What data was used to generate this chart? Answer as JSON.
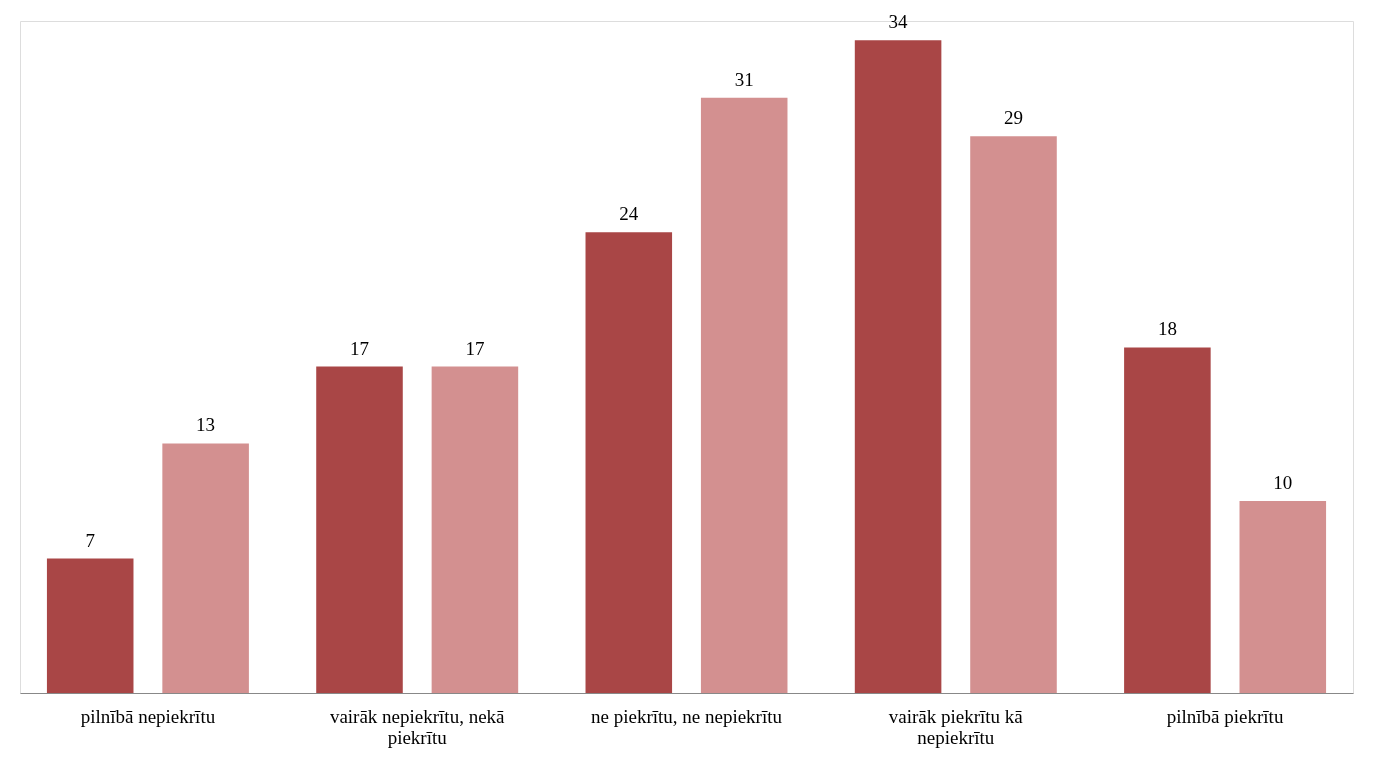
{
  "chart_data": {
    "type": "bar",
    "categories": [
      "pilnībā nepiekrītu",
      "vairāk nepiekrītu, nekā piekrītu",
      "ne piekrītu, ne nepiekrītu",
      "vairāk piekrītu kā nepiekrītu",
      "pilnībā piekrītu"
    ],
    "series": [
      {
        "color": "#a94646",
        "values": [
          7,
          17,
          24,
          34,
          18
        ]
      },
      {
        "color": "#d39090",
        "values": [
          13,
          17,
          31,
          29,
          10
        ]
      }
    ],
    "data_labels": true
  }
}
